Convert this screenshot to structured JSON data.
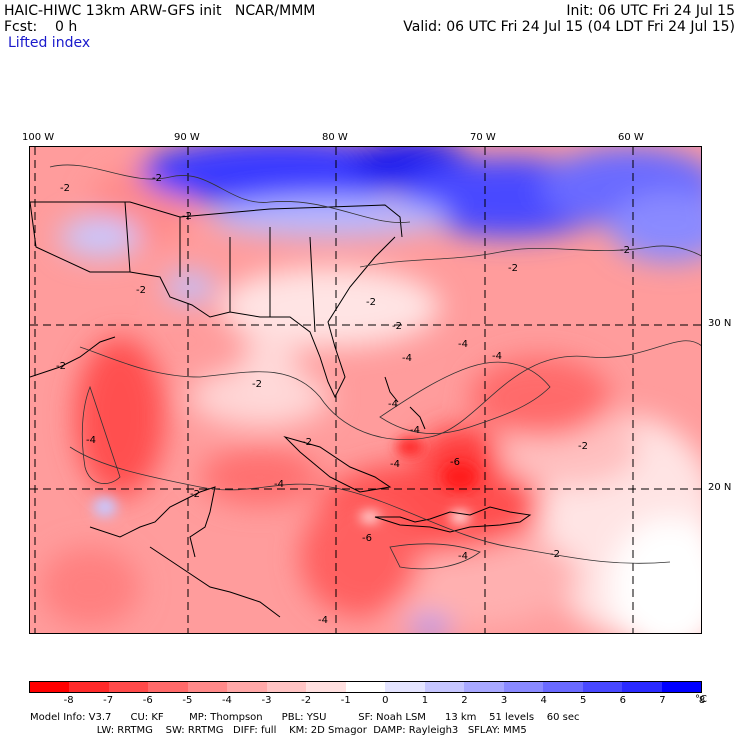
{
  "header": {
    "model_line": "HAIC-HIWC 13km ARW-GFS init   NCAR/MMM",
    "init_line": "Init: 06 UTC Fri 24 Jul 15",
    "fcst_line": "Fcst:    0 h",
    "valid_line": "Valid: 06 UTC Fri 24 Jul 15 (04 LDT Fri 24 Jul 15)",
    "field_name": "Lifted index"
  },
  "map": {
    "lon_labels": [
      "100 W",
      "90 W",
      "80 W",
      "70 W",
      "60 W"
    ],
    "lat_labels": [
      "30 N",
      "20 N"
    ],
    "contour_labels": [
      "-2",
      "-2",
      "-2",
      "-2",
      "-2",
      "-2",
      "-2",
      "-2",
      "-2",
      "-2",
      "-2",
      "-2",
      "-4",
      "-4",
      "-4",
      "-4",
      "-4",
      "-4",
      "-4",
      "-4",
      "-4",
      "-4",
      "-6",
      "-6",
      "-2",
      "-2"
    ]
  },
  "colorbar": {
    "colors": [
      "#ff0000",
      "#ff2a2a",
      "#ff4a4a",
      "#ff6a6a",
      "#ff8a8a",
      "#ffa8a8",
      "#ffc4c4",
      "#ffe0e0",
      "#ffffff",
      "#e4e4ff",
      "#c6c6ff",
      "#a8a8ff",
      "#8a8aff",
      "#6a6aff",
      "#4848ff",
      "#2a2aff",
      "#0000ff"
    ],
    "ticks": [
      "-8",
      "-7",
      "-6",
      "-5",
      "-4",
      "-3",
      "-2",
      "-1",
      "0",
      "1",
      "2",
      "3",
      "4",
      "5",
      "6",
      "7",
      "8"
    ],
    "unit": "°C"
  },
  "model_info": {
    "line1": "Model Info: V3.7      CU: KF        MP: Thompson      PBL: YSU          SF: Noah LSM      13 km    51 levels    60 sec",
    "line2": "                     LW: RRTMG    SW: RRTMG   DIFF: full    KM: 2D Smagor  DAMP: Rayleigh3   SFLAY: MM5"
  }
}
